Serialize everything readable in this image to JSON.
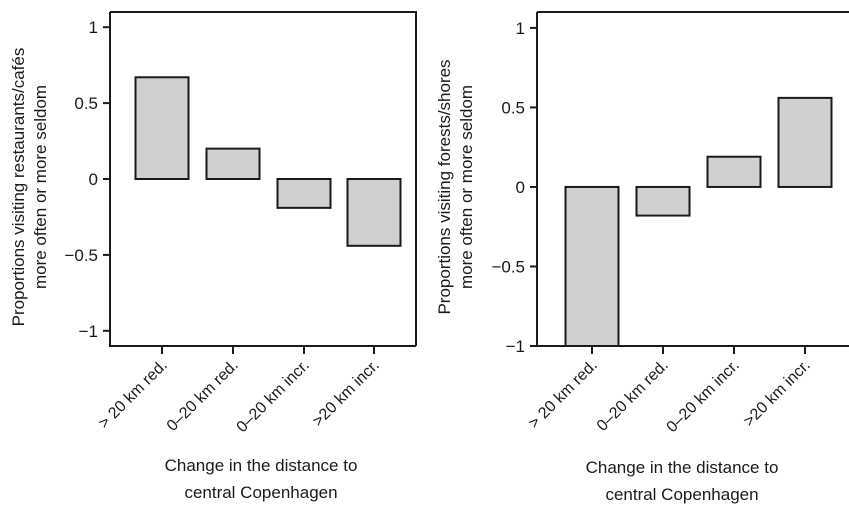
{
  "chart_data": [
    {
      "type": "bar",
      "categories": [
        "> 20 km red.",
        "0–20 km red.",
        "0–20 km incr.",
        ">20 km incr."
      ],
      "values": [
        0.67,
        0.2,
        -0.19,
        -0.44
      ],
      "ylim": [
        -1.1,
        1.1
      ],
      "yticks": [
        1,
        0.5,
        0,
        -0.5,
        -1
      ],
      "ytick_labels": [
        "1",
        "0.5",
        "0",
        "−0.5",
        "−1"
      ],
      "ylabel_lines": [
        "Proportions visiting restaurants/cafés",
        "more often or more seldom"
      ],
      "xlabel_lines": [
        "Change in the distance to",
        "central Copenhagen"
      ],
      "grid": false,
      "bar_color": "#d0d0d0",
      "edge_color": "#1a1a1a"
    },
    {
      "type": "bar",
      "categories": [
        "> 20 km red.",
        "0–20 km red.",
        "0–20 km incr.",
        ">20 km incr."
      ],
      "values": [
        -1.0,
        -0.18,
        0.19,
        0.56
      ],
      "ylim": [
        -1.0,
        1.1
      ],
      "yticks": [
        1,
        0.5,
        0,
        -0.5,
        -1
      ],
      "ytick_labels": [
        "1",
        "0.5",
        "0",
        "−0.5",
        "−1"
      ],
      "ylabel_lines": [
        "Proportions visiting forests/shores",
        "more often or more seldom"
      ],
      "xlabel_lines": [
        "Change in the distance to",
        "central Copenhagen"
      ],
      "grid": false,
      "bar_color": "#d0d0d0",
      "edge_color": "#1a1a1a"
    }
  ]
}
